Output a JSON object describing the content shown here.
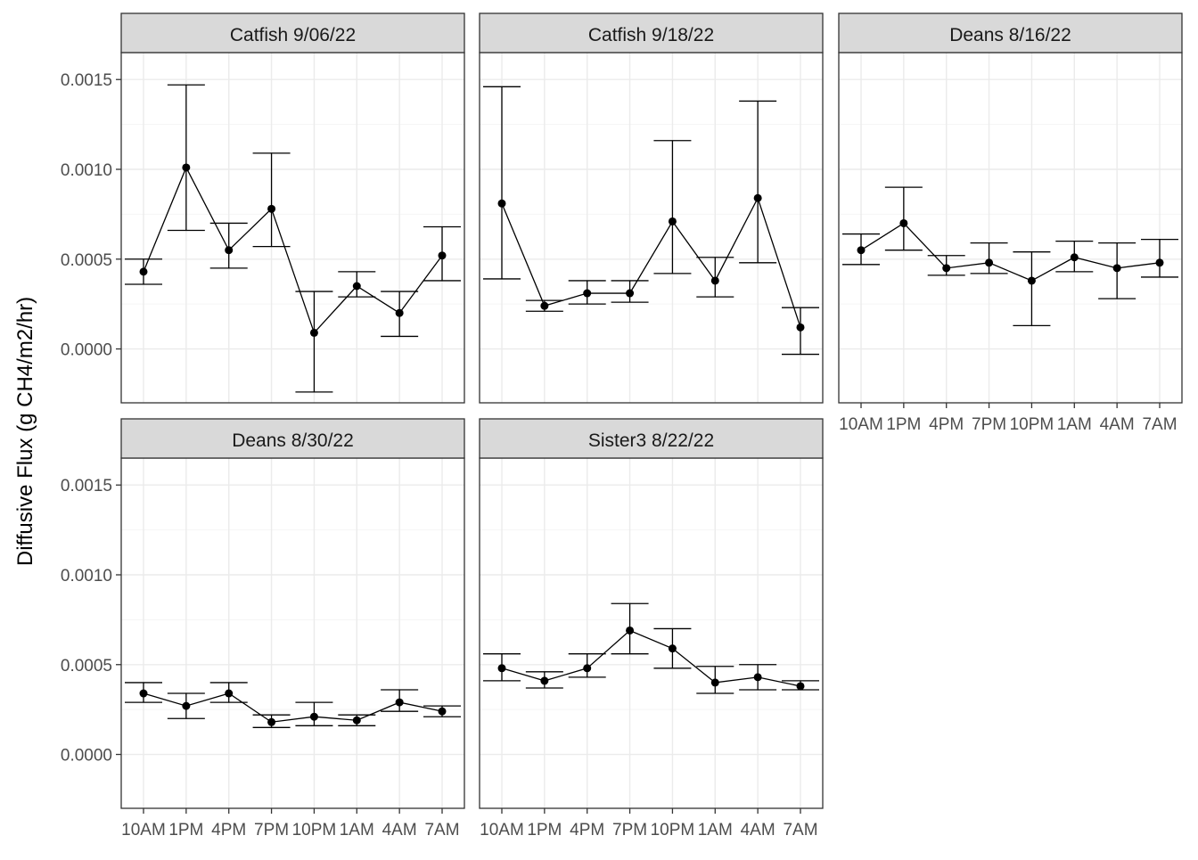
{
  "chart_data": {
    "type": "line",
    "facet_layout": {
      "columns": 3,
      "rows": 2
    },
    "ylabel": "Diffusive Flux (g CH4/m2/hr)",
    "xlabel": "",
    "x_categories": [
      "10AM",
      "1PM",
      "4PM",
      "7PM",
      "10PM",
      "1AM",
      "4AM",
      "7AM"
    ],
    "ylim": [
      -0.0003,
      0.00165
    ],
    "yticks": [
      0.0,
      0.0005,
      0.001,
      0.0015
    ],
    "ytick_labels": [
      "0.0000",
      "0.0005",
      "0.0010",
      "0.0015"
    ],
    "grid": true,
    "error_bars": true,
    "colors": {
      "panel_bg": "#ffffff",
      "strip_bg": "#d9d9d9",
      "border": "#333333",
      "grid_major": "#ebebeb",
      "grid_minor": "#f5f5f5",
      "series": "#000000",
      "tick_label": "#4d4d4d"
    },
    "panels": [
      {
        "title": "Catfish 9/06/22",
        "mean": [
          0.00043,
          0.00101,
          0.00055,
          0.00078,
          9e-05,
          0.00035,
          0.0002,
          0.00052
        ],
        "lower": [
          0.00036,
          0.00066,
          0.00045,
          0.00057,
          -0.00024,
          0.00029,
          7e-05,
          0.00038
        ],
        "upper": [
          0.0005,
          0.00147,
          0.0007,
          0.00109,
          0.00032,
          0.00043,
          0.00032,
          0.00068
        ]
      },
      {
        "title": "Catfish 9/18/22",
        "mean": [
          0.00081,
          0.00024,
          0.00031,
          0.00031,
          0.00071,
          0.00038,
          0.00084,
          0.00012
        ],
        "lower": [
          0.00039,
          0.00021,
          0.00025,
          0.00026,
          0.00042,
          0.00029,
          0.00048,
          -3e-05
        ],
        "upper": [
          0.00146,
          0.00027,
          0.00038,
          0.00038,
          0.00116,
          0.00051,
          0.00138,
          0.00023
        ]
      },
      {
        "title": "Deans 8/16/22",
        "mean": [
          0.00055,
          0.0007,
          0.00045,
          0.00048,
          0.00038,
          0.00051,
          0.00045,
          0.00048
        ],
        "lower": [
          0.00047,
          0.00055,
          0.00041,
          0.00042,
          0.00013,
          0.00043,
          0.00028,
          0.0004
        ],
        "upper": [
          0.00064,
          0.0009,
          0.00052,
          0.00059,
          0.00054,
          0.0006,
          0.00059,
          0.00061
        ]
      },
      {
        "title": "Deans 8/30/22",
        "mean": [
          0.00034,
          0.00027,
          0.00034,
          0.00018,
          0.00021,
          0.00019,
          0.00029,
          0.00024
        ],
        "lower": [
          0.00029,
          0.0002,
          0.00029,
          0.00015,
          0.00016,
          0.00016,
          0.00024,
          0.00021
        ],
        "upper": [
          0.0004,
          0.00034,
          0.0004,
          0.00022,
          0.00029,
          0.00022,
          0.00036,
          0.00027
        ]
      },
      {
        "title": "Sister3 8/22/22",
        "mean": [
          0.00048,
          0.00041,
          0.00048,
          0.00069,
          0.00059,
          0.0004,
          0.00043,
          0.00038
        ],
        "lower": [
          0.00041,
          0.00037,
          0.00043,
          0.00056,
          0.00048,
          0.00034,
          0.00036,
          0.00036
        ],
        "upper": [
          0.00056,
          0.00046,
          0.00056,
          0.00084,
          0.0007,
          0.00049,
          0.0005,
          0.00041
        ]
      }
    ]
  }
}
